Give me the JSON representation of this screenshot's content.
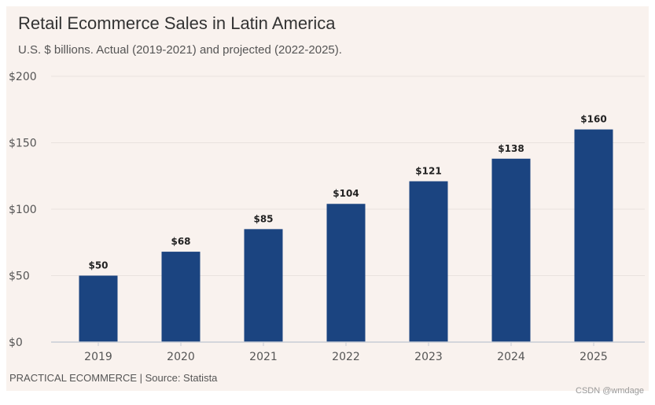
{
  "chart_data": {
    "type": "bar",
    "title": "Retail Ecommerce Sales in Latin America",
    "subtitle": "U.S. $ billions. Actual (2019-2021) and projected (2022-2025).",
    "categories": [
      "2019",
      "2020",
      "2021",
      "2022",
      "2023",
      "2024",
      "2025"
    ],
    "values": [
      50,
      68,
      85,
      104,
      121,
      138,
      160
    ],
    "data_labels": [
      "$50",
      "$68",
      "$85",
      "$104",
      "$121",
      "$138",
      "$160"
    ],
    "y_ticks": [
      0,
      50,
      100,
      150,
      200
    ],
    "y_tick_labels": [
      "$0",
      "$50",
      "$100",
      "$150",
      "$200"
    ],
    "ylim": [
      0,
      200
    ],
    "xlabel": "",
    "ylabel": "",
    "grid": true,
    "legend": "none",
    "bar_color": "#1b4480",
    "background_color": "#f9f2ee"
  },
  "footer": {
    "source": "PRACTICAL ECOMMERCE | Source: Statista",
    "watermark": "CSDN @wmdage"
  }
}
